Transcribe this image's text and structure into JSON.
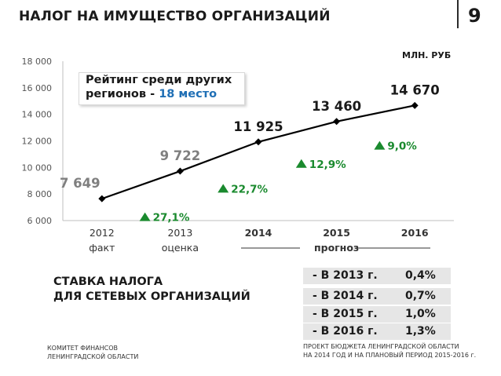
{
  "header": {
    "title": "НАЛОГ НА ИМУЩЕСТВО ОРГАНИЗАЦИЙ",
    "page_number": "9"
  },
  "chart_data": {
    "type": "line",
    "unit_label": "МЛН. РУБ",
    "categories": [
      "2012",
      "2013",
      "2014",
      "2015",
      "2016"
    ],
    "category_notes": [
      "факт",
      "оценка",
      "",
      "прогноз",
      ""
    ],
    "x": [
      "2012",
      "2013",
      "2014",
      "2015",
      "2016"
    ],
    "values": [
      7649,
      9722,
      11925,
      13460,
      14670
    ],
    "value_labels": [
      "7 649",
      "9 722",
      "11 925",
      "13 460",
      "14 670"
    ],
    "growth_labels": [
      "",
      "27,1%",
      "22,7%",
      "12,9%",
      "9,0%"
    ],
    "ylim": [
      6000,
      18000
    ],
    "yticks": [
      6000,
      8000,
      10000,
      12000,
      14000,
      16000,
      18000
    ],
    "ytick_labels": [
      "6 000",
      "8 000",
      "10 000",
      "12 000",
      "14 000",
      "16 000",
      "18 000"
    ],
    "colors": {
      "line": "#000000",
      "growth": "#1a8a2e",
      "historic_label": "#7f7f7f",
      "forecast_label": "#1a1a1a",
      "axis": "#bfbfbf"
    },
    "grid": false,
    "legend": "none"
  },
  "callout": {
    "line1": "Рейтинг среди других",
    "line2_prefix": "регионов - ",
    "line2_highlight": "18 место"
  },
  "rates": {
    "title_line1": "СТАВКА НАЛОГА",
    "title_line2": "ДЛЯ СЕТЕВЫХ ОРГАНИЗАЦИЙ",
    "rows": [
      {
        "year": "- В 2013 г.",
        "value": "0,4%"
      },
      {
        "year": "- В 2014 г.",
        "value": "0,7%"
      },
      {
        "year": "- В 2015 г.",
        "value": "1,0%"
      },
      {
        "year": "- В 2016 г.",
        "value": "1,3%"
      }
    ]
  },
  "footer": {
    "left_line1": "КОМИТЕТ ФИНАНСОВ",
    "left_line2": "ЛЕНИНГРАДСКОЙ ОБЛАСТИ",
    "right_line1": "ПРОЕКТ БЮДЖЕТА ЛЕНИНГРАДСКОЙ ОБЛАСТИ",
    "right_line2": "НА 2014 ГОД И НА ПЛАНОВЫЙ ПЕРИОД 2015-2016 г."
  }
}
